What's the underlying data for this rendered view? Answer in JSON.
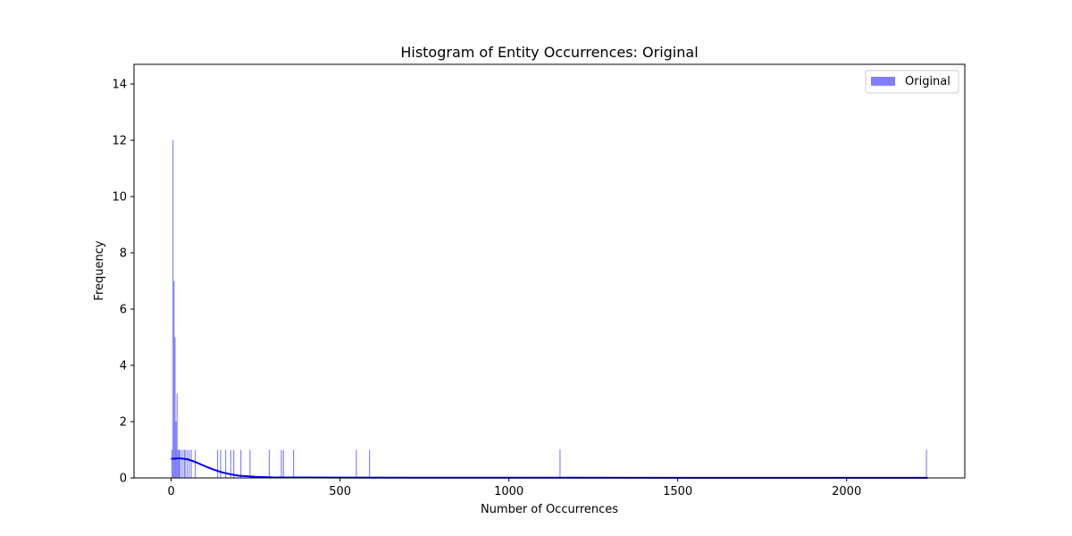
{
  "chart_data": {
    "type": "bar",
    "title": "Histogram of Entity Occurrences: Original",
    "xlabel": "Number of Occurrences",
    "ylabel": "Frequency",
    "xlim": [
      -110,
      2350
    ],
    "ylim": [
      0,
      14.7
    ],
    "xticks": [
      0,
      500,
      1000,
      1500,
      2000
    ],
    "yticks": [
      0,
      2,
      4,
      6,
      8,
      10,
      12,
      14
    ],
    "grid": false,
    "legend_position": "top-right",
    "series": [
      {
        "name": "Original",
        "color": "#0000ff",
        "opacity": 0.5,
        "bin_width": 3,
        "bins": [
          {
            "x": 1,
            "count": 1
          },
          {
            "x": 4,
            "count": 12
          },
          {
            "x": 7,
            "count": 7
          },
          {
            "x": 10,
            "count": 5
          },
          {
            "x": 13,
            "count": 2
          },
          {
            "x": 16,
            "count": 3
          },
          {
            "x": 19,
            "count": 1
          },
          {
            "x": 22,
            "count": 1
          },
          {
            "x": 25,
            "count": 1
          },
          {
            "x": 31,
            "count": 1
          },
          {
            "x": 37,
            "count": 1
          },
          {
            "x": 40,
            "count": 1
          },
          {
            "x": 46,
            "count": 1
          },
          {
            "x": 52,
            "count": 1
          },
          {
            "x": 58,
            "count": 1
          },
          {
            "x": 70,
            "count": 1
          },
          {
            "x": 136,
            "count": 1
          },
          {
            "x": 145,
            "count": 1
          },
          {
            "x": 160,
            "count": 1
          },
          {
            "x": 175,
            "count": 1
          },
          {
            "x": 184,
            "count": 1
          },
          {
            "x": 205,
            "count": 1
          },
          {
            "x": 232,
            "count": 1
          },
          {
            "x": 289,
            "count": 1
          },
          {
            "x": 325,
            "count": 1
          },
          {
            "x": 331,
            "count": 1
          },
          {
            "x": 361,
            "count": 1
          },
          {
            "x": 547,
            "count": 1
          },
          {
            "x": 586,
            "count": 1
          },
          {
            "x": 1150,
            "count": 1
          },
          {
            "x": 2235,
            "count": 1
          }
        ],
        "kde": {
          "x": [
            0,
            25,
            50,
            75,
            100,
            125,
            150,
            175,
            200,
            250,
            300,
            400,
            500,
            750,
            1000,
            1500,
            2000,
            2240
          ],
          "y": [
            0.68,
            0.7,
            0.66,
            0.55,
            0.42,
            0.3,
            0.2,
            0.13,
            0.08,
            0.04,
            0.02,
            0.015,
            0.012,
            0.01,
            0.01,
            0.005,
            0.005,
            0.005
          ]
        }
      }
    ]
  }
}
